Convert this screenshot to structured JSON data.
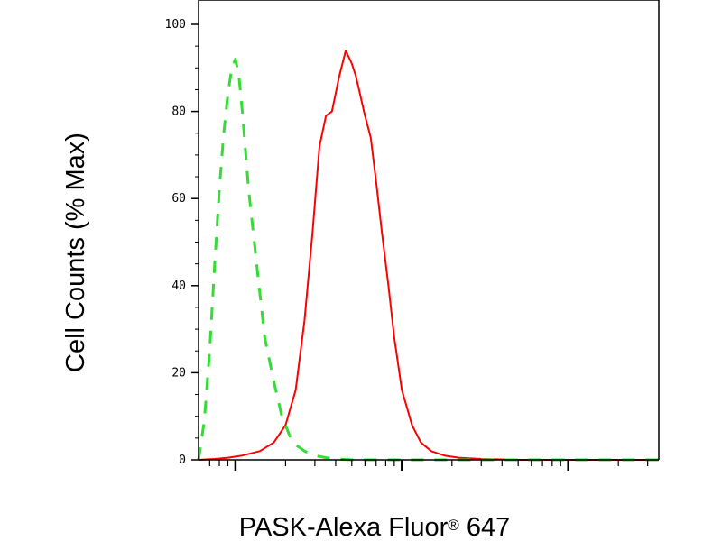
{
  "chart_data": {
    "type": "line",
    "xlabel": "PASK-Alexa Fluor",
    "xlabel_mark": "®",
    "xlabel_suffix": " 647",
    "ylabel": "Cell Counts (% Max)",
    "x_scale": "log",
    "xlim": [
      0.6,
      350
    ],
    "ylim": [
      0,
      104
    ],
    "y_ticks": [
      0,
      20,
      40,
      60,
      80,
      100
    ],
    "y_tick_labels": [
      "0",
      "20",
      "40",
      "60",
      "80",
      "100"
    ],
    "x_major_ticks": [
      1,
      10,
      100
    ],
    "x_minor_ticks": [
      0.7,
      0.8,
      0.9,
      2,
      3,
      4,
      5,
      6,
      7,
      8,
      9,
      20,
      30,
      40,
      50,
      60,
      70,
      80,
      90,
      200,
      300
    ],
    "grid": false,
    "legend": "none",
    "series": [
      {
        "color": "#ff0000",
        "line_style": "solid",
        "x": [
          0.6,
          0.75,
          0.9,
          1.1,
          1.4,
          1.7,
          2.0,
          2.3,
          2.6,
          2.9,
          3.2,
          3.5,
          3.8,
          4.2,
          4.6,
          5.0,
          5.3,
          5.6,
          6.0,
          6.5,
          7.0,
          7.6,
          8.3,
          9.0,
          10.0,
          11.5,
          13.0,
          15.0,
          18.0,
          22.0,
          30.0,
          50.0,
          100.0,
          350.0
        ],
        "y": [
          0,
          0.2,
          0.5,
          1,
          2,
          4,
          8,
          16,
          32,
          52,
          72,
          79,
          80,
          88,
          94,
          91,
          88,
          84,
          79,
          74,
          64,
          52,
          40,
          28,
          16,
          8,
          4,
          2,
          1,
          0.5,
          0.2,
          0,
          0,
          0
        ]
      },
      {
        "color": "#33dd33",
        "line_style": "dashed",
        "x": [
          0.6,
          0.65,
          0.7,
          0.75,
          0.8,
          0.85,
          0.9,
          0.95,
          1.0,
          1.05,
          1.1,
          1.2,
          1.35,
          1.5,
          1.7,
          1.9,
          2.2,
          2.6,
          3.0,
          3.5,
          4.0,
          5.0,
          7.0,
          10.0,
          350.0
        ],
        "y": [
          0,
          9,
          25,
          45,
          62,
          75,
          84,
          90,
          92,
          88,
          80,
          62,
          44,
          28,
          18,
          10,
          4,
          2,
          1,
          0.5,
          0.2,
          0,
          0,
          0,
          0
        ]
      }
    ]
  }
}
